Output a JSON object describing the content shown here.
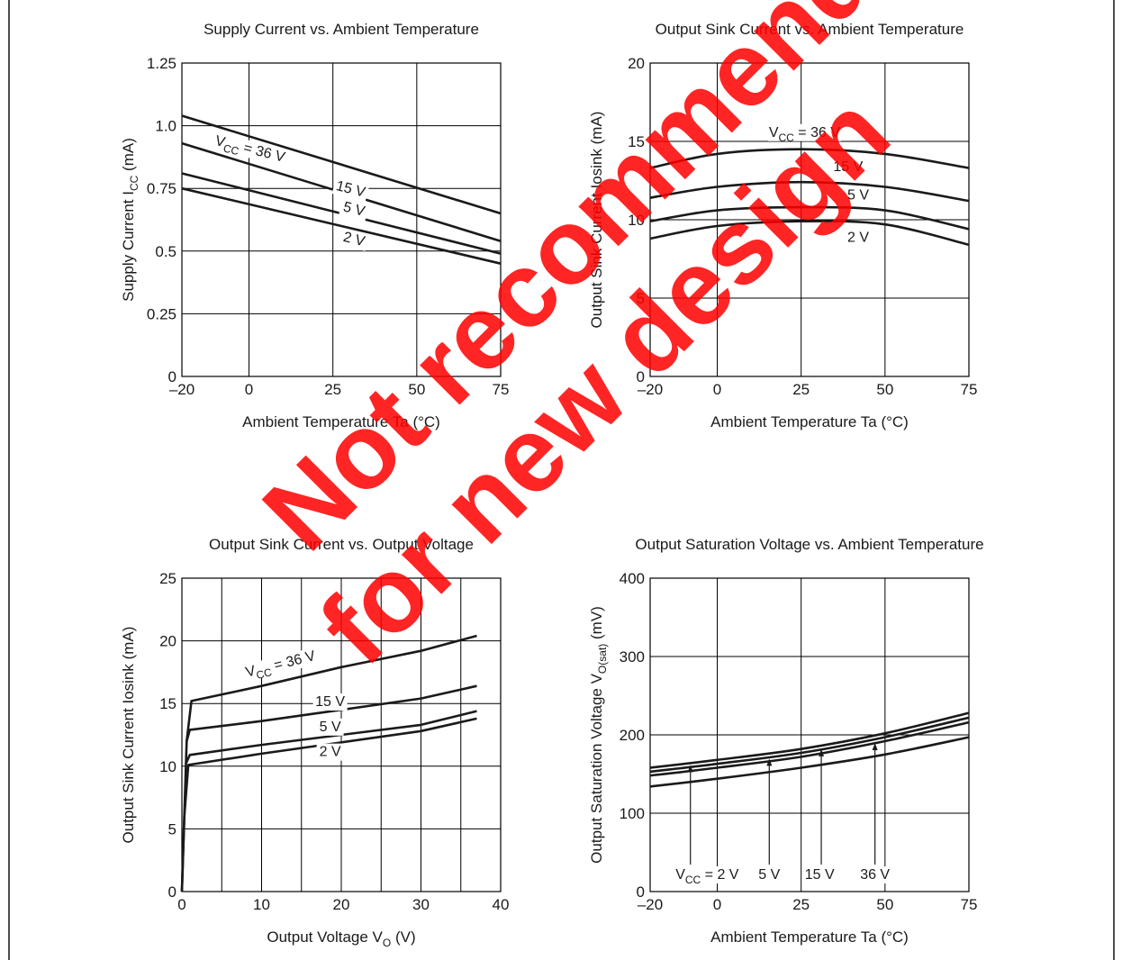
{
  "theme": {
    "curve_color": "#1a1a1a",
    "grid_color": "#000000",
    "watermark_color": "#ff0000"
  },
  "watermark": {
    "line1": "Not recommend",
    "line2": "for new design"
  },
  "chart_data": [
    {
      "type": "line",
      "title": "Supply Current vs. Ambient Temperature",
      "xlabel": "Ambient Temperature  Ta  (°C)",
      "ylabel": "Supply Current  I",
      "ylabel_sub": "CC",
      "ylabel_tail": "  (mA)",
      "xlim": [
        -20,
        75
      ],
      "ylim": [
        0,
        1.25
      ],
      "xticks": [
        -20,
        0,
        25,
        50,
        75
      ],
      "yticks": [
        0,
        0.25,
        0.5,
        0.75,
        1.0,
        1.25
      ],
      "xtick_labels": [
        "–20",
        "0",
        "25",
        "50",
        "75"
      ],
      "ytick_labels": [
        "0",
        "0.25",
        "0.5",
        "0.75",
        "1.0",
        "1.25"
      ],
      "grid": true,
      "series": [
        {
          "name": "VCC = 36 V",
          "x": [
            -20,
            75
          ],
          "y": [
            1.04,
            0.65
          ]
        },
        {
          "name": "15 V",
          "x": [
            -20,
            75
          ],
          "y": [
            0.93,
            0.54
          ]
        },
        {
          "name": "5 V",
          "x": [
            -20,
            75
          ],
          "y": [
            0.81,
            0.49
          ]
        },
        {
          "name": "2 V",
          "x": [
            -20,
            75
          ],
          "y": [
            0.75,
            0.45
          ]
        }
      ],
      "labels": [
        {
          "main": "V",
          "sub": "CC",
          "tail": " = 36 V",
          "x": 0,
          "y": 0.89,
          "angle": 14
        },
        {
          "main": "15 V",
          "sub": "",
          "tail": "",
          "x": 30,
          "y": 0.73,
          "angle": 14
        },
        {
          "main": "5 V",
          "sub": "",
          "tail": "",
          "x": 31,
          "y": 0.65,
          "angle": 14
        },
        {
          "main": "2 V",
          "sub": "",
          "tail": "",
          "x": 31,
          "y": 0.53,
          "angle": 14
        }
      ]
    },
    {
      "type": "line",
      "title": "Output Sink Current vs. Ambient Temperature",
      "xlabel": "Ambient Temperature  Ta  (°C)",
      "ylabel": "Output Sink Current  Iosink  (mA)",
      "ylabel_sub": "",
      "ylabel_tail": "",
      "xlim": [
        -20,
        75
      ],
      "ylim": [
        0,
        20
      ],
      "xticks": [
        -20,
        0,
        25,
        50,
        75
      ],
      "yticks": [
        0,
        5,
        10,
        15,
        20
      ],
      "xtick_labels": [
        "–20",
        "0",
        "25",
        "50",
        "75"
      ],
      "ytick_labels": [
        "0",
        "5",
        "10",
        "15",
        "20"
      ],
      "grid": true,
      "series": [
        {
          "name": "VCC = 36 V",
          "x": [
            -20,
            0,
            25,
            50,
            75
          ],
          "y": [
            13.3,
            14.2,
            14.5,
            14.2,
            13.3
          ]
        },
        {
          "name": "15 V",
          "x": [
            -20,
            0,
            25,
            50,
            75
          ],
          "y": [
            11.4,
            12.1,
            12.4,
            12.1,
            11.2
          ]
        },
        {
          "name": "5 V",
          "x": [
            -20,
            0,
            25,
            50,
            75
          ],
          "y": [
            9.9,
            10.6,
            10.8,
            10.6,
            9.4
          ]
        },
        {
          "name": "2 V",
          "x": [
            -20,
            0,
            25,
            50,
            75
          ],
          "y": [
            8.8,
            9.6,
            9.9,
            9.7,
            8.4
          ]
        }
      ],
      "labels": [
        {
          "main": "V",
          "sub": "CC",
          "tail": " = 36 V",
          "x": 26,
          "y": 15.3,
          "angle": 0
        },
        {
          "main": "15 V",
          "sub": "",
          "tail": "",
          "x": 39,
          "y": 13.1,
          "angle": 0
        },
        {
          "main": "5 V",
          "sub": "",
          "tail": "",
          "x": 42,
          "y": 11.3,
          "angle": 0
        },
        {
          "main": "2 V",
          "sub": "",
          "tail": "",
          "x": 42,
          "y": 8.6,
          "angle": 0
        }
      ]
    },
    {
      "type": "line",
      "title": "Output Sink Current vs. Output Voltage",
      "xlabel": "Output Voltage  V",
      "xlabel_sub": "O",
      "xlabel_tail": "  (V)",
      "ylabel": "Output Sink Current  Iosink  (mA)",
      "ylabel_sub": "",
      "ylabel_tail": "",
      "xlim": [
        0,
        40
      ],
      "ylim": [
        0,
        25
      ],
      "xticks": [
        0,
        5,
        10,
        15,
        20,
        25,
        30,
        35,
        40
      ],
      "yticks": [
        0,
        5,
        10,
        15,
        20,
        25
      ],
      "xtick_labels": [
        "0",
        "",
        "10",
        "",
        "20",
        "",
        "30",
        "",
        "40"
      ],
      "ytick_labels": [
        "0",
        "5",
        "10",
        "15",
        "20",
        "25"
      ],
      "grid": true,
      "series": [
        {
          "name": "VCC = 36 V",
          "x": [
            0,
            0.6,
            1.2,
            10,
            20,
            30,
            37
          ],
          "y": [
            0,
            12,
            15.2,
            16.4,
            17.9,
            19.2,
            20.4
          ]
        },
        {
          "name": "15 V",
          "x": [
            0.6,
            1,
            10,
            20,
            30,
            37
          ],
          "y": [
            12,
            12.9,
            13.6,
            14.5,
            15.4,
            16.4
          ]
        },
        {
          "name": "5 V",
          "x": [
            0.5,
            1,
            10,
            20,
            30,
            37
          ],
          "y": [
            10.2,
            10.9,
            11.7,
            12.5,
            13.3,
            14.4
          ]
        },
        {
          "name": "2 V",
          "x": [
            0,
            0.3,
            0.8,
            10,
            20,
            30,
            37
          ],
          "y": [
            0,
            6,
            10.1,
            11,
            11.9,
            12.8,
            13.8
          ]
        }
      ],
      "labels": [
        {
          "main": "V",
          "sub": "CC",
          "tail": " = 36 V",
          "x": 12.5,
          "y": 17.8,
          "angle": -14
        },
        {
          "main": "15 V",
          "sub": "",
          "tail": "",
          "x": 18.6,
          "y": 14.8,
          "angle": 0
        },
        {
          "main": "5 V",
          "sub": "",
          "tail": "",
          "x": 18.6,
          "y": 12.8,
          "angle": 0
        },
        {
          "main": "2 V",
          "sub": "",
          "tail": "",
          "x": 18.6,
          "y": 10.8,
          "angle": 0
        }
      ]
    },
    {
      "type": "line",
      "title": "Output Saturation Voltage vs. Ambient Temperature",
      "xlabel": "Ambient Temperature  Ta  (°C)",
      "ylabel": "Output Saturation Voltage  V",
      "ylabel_sub": "O(sat)",
      "ylabel_tail": "  (mV)",
      "xlim": [
        -20,
        75
      ],
      "ylim": [
        0,
        400
      ],
      "xticks": [
        -20,
        0,
        25,
        50,
        75
      ],
      "yticks": [
        0,
        100,
        200,
        300,
        400
      ],
      "xtick_labels": [
        "–20",
        "0",
        "25",
        "50",
        "75"
      ],
      "ytick_labels": [
        "0",
        "100",
        "200",
        "300",
        "400"
      ],
      "grid": true,
      "series": [
        {
          "name": "36 V",
          "x": [
            -20,
            0,
            25,
            50,
            75
          ],
          "y": [
            158,
            168,
            182,
            202,
            228
          ]
        },
        {
          "name": "15 V",
          "x": [
            -20,
            0,
            25,
            50,
            75
          ],
          "y": [
            153,
            163,
            177,
            197,
            222
          ]
        },
        {
          "name": "5 V",
          "x": [
            -20,
            0,
            25,
            50,
            75
          ],
          "y": [
            148,
            158,
            172,
            192,
            216
          ]
        },
        {
          "name": "2 V",
          "x": [
            -20,
            0,
            25,
            50,
            75
          ],
          "y": [
            134,
            144,
            158,
            175,
            197
          ]
        }
      ],
      "labels": [
        {
          "main": "V",
          "sub": "CC",
          "tail": " = 2 V",
          "x": -3,
          "y": 16,
          "angle": 0,
          "arrow_x": -8,
          "arrow_to": 164
        },
        {
          "main": "5 V",
          "sub": "",
          "tail": "",
          "x": 15.5,
          "y": 16,
          "angle": 0,
          "arrow_x": 15.5,
          "arrow_to": 172
        },
        {
          "main": "15 V",
          "sub": "",
          "tail": "",
          "x": 30.5,
          "y": 16,
          "angle": 0,
          "arrow_x": 31,
          "arrow_to": 184
        },
        {
          "main": "36 V",
          "sub": "",
          "tail": "",
          "x": 47,
          "y": 16,
          "angle": 0,
          "arrow_x": 47,
          "arrow_to": 192
        }
      ]
    }
  ]
}
